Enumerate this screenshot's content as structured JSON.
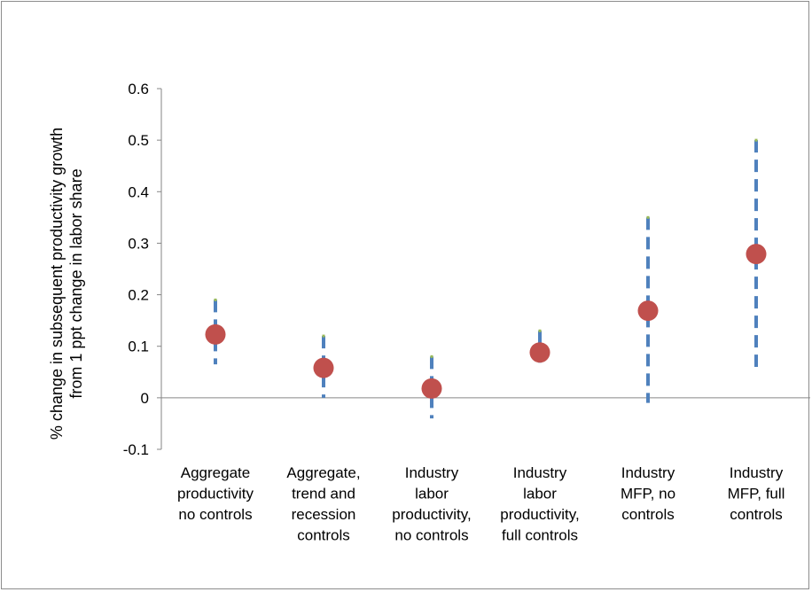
{
  "chart_data": {
    "type": "scatter",
    "title": "",
    "ylabel_lines": [
      "% change in subsequent productivity growth",
      "from 1 ppt change in labor share"
    ],
    "ylim": [
      -0.1,
      0.6
    ],
    "y_ticks": [
      "-0.1",
      "0",
      "0.1",
      "0.2",
      "0.3",
      "0.4",
      "0.5",
      "0.6"
    ],
    "y_tick_values": [
      -0.1,
      0,
      0.1,
      0.2,
      0.3,
      0.4,
      0.5,
      0.6
    ],
    "categories": [
      [
        "Aggregate",
        "productivity",
        "no controls"
      ],
      [
        "Aggregate,",
        "trend and",
        "recession",
        "controls"
      ],
      [
        "Industry",
        "labor",
        "productivity,",
        "no controls"
      ],
      [
        "Industry",
        "labor",
        "productivity,",
        "full controls"
      ],
      [
        "Industry",
        "MFP, no",
        "controls"
      ],
      [
        "Industry",
        "MFP, full",
        "controls"
      ]
    ],
    "estimates": [
      0.123,
      0.058,
      0.018,
      0.088,
      0.169,
      0.279
    ],
    "ci_low": [
      0.065,
      0.0,
      -0.04,
      0.055,
      -0.01,
      0.06
    ],
    "ci_high": [
      0.19,
      0.12,
      0.08,
      0.13,
      0.35,
      0.5
    ],
    "grid": false,
    "legend": "none",
    "colors": {
      "point": "#c0504d",
      "interval": "#4f81bd",
      "cap": "#9bbb59",
      "axis": "#868686"
    }
  }
}
